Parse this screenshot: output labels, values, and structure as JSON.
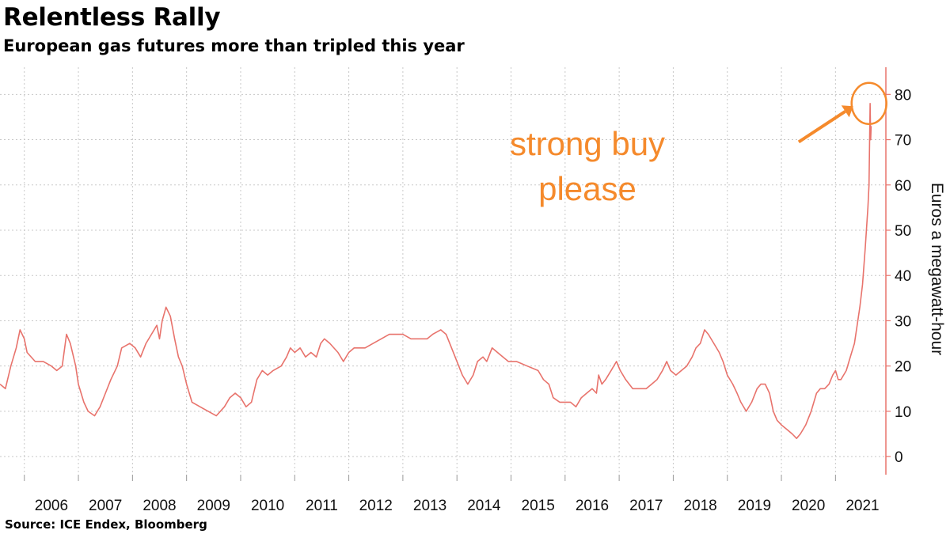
{
  "title": "Relentless Rally",
  "subtitle": "European gas futures more than tripled this year",
  "source": "Source: ICE Endex, Bloomberg",
  "chart_data": {
    "type": "line",
    "ylabel": "Euros a megawatt-hour",
    "ylim": [
      -4,
      86
    ],
    "yticks": [
      0,
      10,
      20,
      30,
      40,
      50,
      60,
      70,
      80
    ],
    "xlim": [
      2005.55,
      2021.8
    ],
    "xticks": [
      {
        "label": "2006",
        "x": 2006.0
      },
      {
        "label": "2007",
        "x": 2007.0
      },
      {
        "label": "2008",
        "x": 2008.0
      },
      {
        "label": "2009",
        "x": 2009.0
      },
      {
        "label": "2010",
        "x": 2010.0
      },
      {
        "label": "2011",
        "x": 2011.0
      },
      {
        "label": "2012",
        "x": 2012.0
      },
      {
        "label": "2013",
        "x": 2013.0
      },
      {
        "label": "2014",
        "x": 2014.0
      },
      {
        "label": "2015",
        "x": 2015.0
      },
      {
        "label": "2016",
        "x": 2016.0
      },
      {
        "label": "2017",
        "x": 2017.0
      },
      {
        "label": "2018",
        "x": 2018.0
      },
      {
        "label": "2019",
        "x": 2019.0
      },
      {
        "label": "2020",
        "x": 2020.0
      },
      {
        "label": "2021",
        "x": 2021.0
      }
    ],
    "grid": true,
    "series_color": "#e8736c",
    "annotation_color": "#f58a2c",
    "annotation": {
      "lines": [
        "strong buy",
        "please"
      ],
      "circle_at": {
        "x": 2021.62,
        "y": 78
      },
      "arrow_from": {
        "x": 2020.32,
        "y": 69.5
      }
    },
    "series": [
      {
        "name": "",
        "points": [
          [
            2005.55,
            16
          ],
          [
            2005.65,
            15
          ],
          [
            2005.75,
            20
          ],
          [
            2005.85,
            24
          ],
          [
            2005.92,
            28
          ],
          [
            2006.0,
            26
          ],
          [
            2006.05,
            23
          ],
          [
            2006.2,
            21
          ],
          [
            2006.35,
            21
          ],
          [
            2006.5,
            20
          ],
          [
            2006.6,
            19
          ],
          [
            2006.7,
            20
          ],
          [
            2006.78,
            27
          ],
          [
            2006.85,
            25
          ],
          [
            2006.95,
            20
          ],
          [
            2007.0,
            16
          ],
          [
            2007.1,
            12
          ],
          [
            2007.18,
            10
          ],
          [
            2007.3,
            9
          ],
          [
            2007.4,
            11
          ],
          [
            2007.5,
            14
          ],
          [
            2007.6,
            17
          ],
          [
            2007.72,
            20
          ],
          [
            2007.8,
            24
          ],
          [
            2007.95,
            25
          ],
          [
            2008.05,
            24
          ],
          [
            2008.15,
            22
          ],
          [
            2008.25,
            25
          ],
          [
            2008.35,
            27
          ],
          [
            2008.45,
            29
          ],
          [
            2008.5,
            26
          ],
          [
            2008.55,
            30
          ],
          [
            2008.62,
            33
          ],
          [
            2008.7,
            31
          ],
          [
            2008.78,
            26
          ],
          [
            2008.85,
            22
          ],
          [
            2008.92,
            20
          ],
          [
            2009.0,
            16
          ],
          [
            2009.1,
            12
          ],
          [
            2009.25,
            11
          ],
          [
            2009.4,
            10
          ],
          [
            2009.55,
            9
          ],
          [
            2009.7,
            11
          ],
          [
            2009.8,
            13
          ],
          [
            2009.9,
            14
          ],
          [
            2010.0,
            13
          ],
          [
            2010.1,
            11
          ],
          [
            2010.2,
            12
          ],
          [
            2010.3,
            17
          ],
          [
            2010.4,
            19
          ],
          [
            2010.5,
            18
          ],
          [
            2010.6,
            19
          ],
          [
            2010.75,
            20
          ],
          [
            2010.85,
            22
          ],
          [
            2010.92,
            24
          ],
          [
            2011.0,
            23
          ],
          [
            2011.1,
            24
          ],
          [
            2011.2,
            22
          ],
          [
            2011.3,
            23
          ],
          [
            2011.4,
            22
          ],
          [
            2011.48,
            25
          ],
          [
            2011.55,
            26
          ],
          [
            2011.65,
            25
          ],
          [
            2011.8,
            23
          ],
          [
            2011.9,
            21
          ],
          [
            2012.0,
            23
          ],
          [
            2012.1,
            24
          ],
          [
            2012.3,
            24
          ],
          [
            2012.45,
            25
          ],
          [
            2012.6,
            26
          ],
          [
            2012.75,
            27
          ],
          [
            2012.9,
            27
          ],
          [
            2013.0,
            27
          ],
          [
            2013.15,
            26
          ],
          [
            2013.3,
            26
          ],
          [
            2013.45,
            26
          ],
          [
            2013.55,
            27
          ],
          [
            2013.7,
            28
          ],
          [
            2013.8,
            27
          ],
          [
            2013.9,
            24
          ],
          [
            2014.0,
            21
          ],
          [
            2014.1,
            18
          ],
          [
            2014.2,
            16
          ],
          [
            2014.3,
            18
          ],
          [
            2014.38,
            21
          ],
          [
            2014.48,
            22
          ],
          [
            2014.55,
            21
          ],
          [
            2014.65,
            24
          ],
          [
            2014.75,
            23
          ],
          [
            2014.85,
            22
          ],
          [
            2014.95,
            21
          ],
          [
            2015.1,
            21
          ],
          [
            2015.3,
            20
          ],
          [
            2015.5,
            19
          ],
          [
            2015.6,
            17
          ],
          [
            2015.7,
            16
          ],
          [
            2015.78,
            13
          ],
          [
            2015.9,
            12
          ],
          [
            2016.0,
            12
          ],
          [
            2016.1,
            12
          ],
          [
            2016.2,
            11
          ],
          [
            2016.3,
            13
          ],
          [
            2016.4,
            14
          ],
          [
            2016.5,
            15
          ],
          [
            2016.58,
            14
          ],
          [
            2016.62,
            18
          ],
          [
            2016.68,
            16
          ],
          [
            2016.75,
            17
          ],
          [
            2016.85,
            19
          ],
          [
            2016.95,
            21
          ],
          [
            2017.02,
            19
          ],
          [
            2017.12,
            17
          ],
          [
            2017.25,
            15
          ],
          [
            2017.35,
            15
          ],
          [
            2017.5,
            15
          ],
          [
            2017.6,
            16
          ],
          [
            2017.7,
            17
          ],
          [
            2017.8,
            19
          ],
          [
            2017.88,
            21
          ],
          [
            2017.95,
            19
          ],
          [
            2018.05,
            18
          ],
          [
            2018.15,
            19
          ],
          [
            2018.25,
            20
          ],
          [
            2018.35,
            22
          ],
          [
            2018.42,
            24
          ],
          [
            2018.5,
            25
          ],
          [
            2018.58,
            28
          ],
          [
            2018.65,
            27
          ],
          [
            2018.75,
            25
          ],
          [
            2018.85,
            23
          ],
          [
            2018.92,
            21
          ],
          [
            2019.0,
            18
          ],
          [
            2019.1,
            16
          ],
          [
            2019.18,
            14
          ],
          [
            2019.25,
            12
          ],
          [
            2019.35,
            10
          ],
          [
            2019.45,
            12
          ],
          [
            2019.55,
            15
          ],
          [
            2019.62,
            16
          ],
          [
            2019.7,
            16
          ],
          [
            2019.78,
            14
          ],
          [
            2019.85,
            10
          ],
          [
            2019.92,
            8
          ],
          [
            2020.0,
            7
          ],
          [
            2020.1,
            6
          ],
          [
            2020.2,
            5
          ],
          [
            2020.28,
            4
          ],
          [
            2020.35,
            5
          ],
          [
            2020.45,
            7
          ],
          [
            2020.55,
            10
          ],
          [
            2020.65,
            14
          ],
          [
            2020.72,
            15
          ],
          [
            2020.8,
            15
          ],
          [
            2020.88,
            16
          ],
          [
            2020.95,
            18
          ],
          [
            2021.0,
            19
          ],
          [
            2021.05,
            17
          ],
          [
            2021.1,
            17
          ],
          [
            2021.15,
            18
          ],
          [
            2021.2,
            19
          ],
          [
            2021.25,
            21
          ],
          [
            2021.3,
            23
          ],
          [
            2021.35,
            25
          ],
          [
            2021.4,
            29
          ],
          [
            2021.45,
            33
          ],
          [
            2021.5,
            38
          ],
          [
            2021.55,
            46
          ],
          [
            2021.6,
            55
          ],
          [
            2021.62,
            60
          ],
          [
            2021.63,
            69
          ],
          [
            2021.64,
            78
          ],
          [
            2021.65,
            70
          ],
          [
            2021.66,
            73
          ]
        ]
      }
    ]
  }
}
